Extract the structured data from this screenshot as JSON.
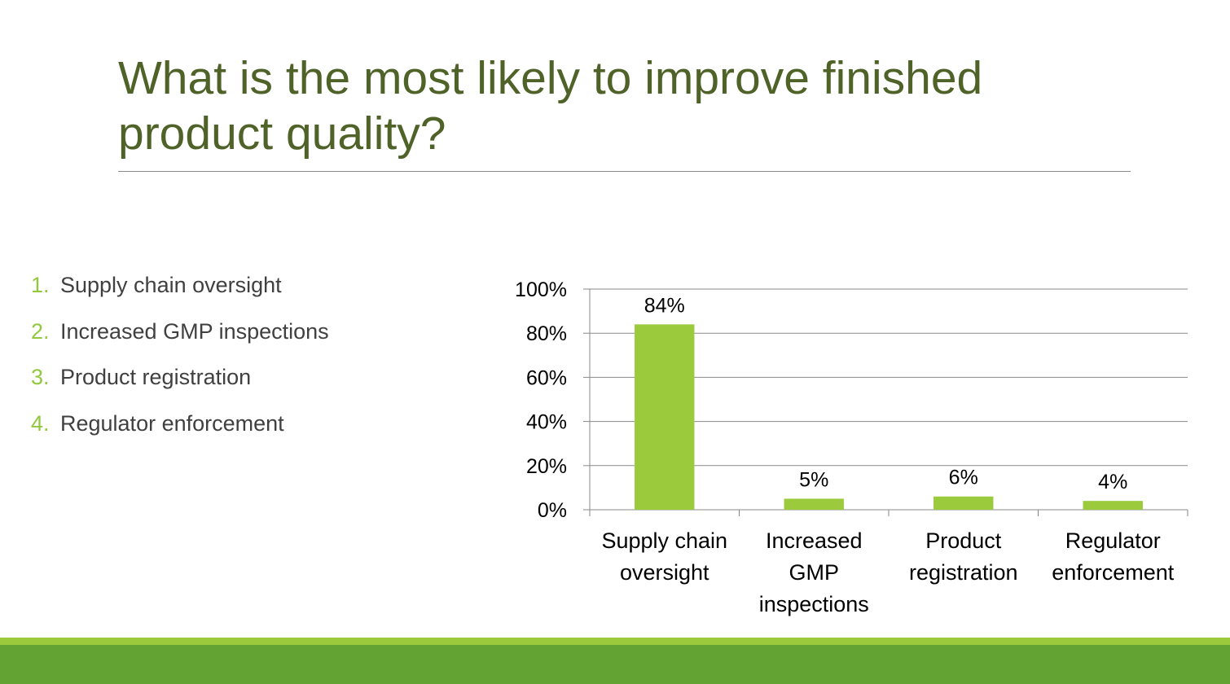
{
  "slide": {
    "title": "What is the most likely to improve finished product quality?"
  },
  "options": [
    {
      "number": "1.",
      "label": "Supply chain oversight"
    },
    {
      "number": "2.",
      "label": "Increased GMP inspections"
    },
    {
      "number": "3.",
      "label": "Product registration"
    },
    {
      "number": "4.",
      "label": "Regulator enforcement"
    }
  ],
  "colors": {
    "title": "#4f6228",
    "bar": "#9bcb3c",
    "list_number": "#92c83e",
    "footer_light": "#9bcb3c",
    "footer_dark": "#62a334"
  },
  "chart_data": {
    "type": "bar",
    "categories": [
      [
        "Supply chain",
        "oversight"
      ],
      [
        "Increased",
        "GMP",
        "inspections"
      ],
      [
        "Product",
        "registration"
      ],
      [
        "Regulator",
        "enforcement"
      ]
    ],
    "values": [
      84,
      5,
      6,
      4
    ],
    "value_labels": [
      "84%",
      "5%",
      "6%",
      "4%"
    ],
    "y_ticks": [
      "0%",
      "20%",
      "40%",
      "60%",
      "80%",
      "100%"
    ],
    "ylim": [
      0,
      100
    ],
    "grid": true,
    "legend": "none"
  }
}
